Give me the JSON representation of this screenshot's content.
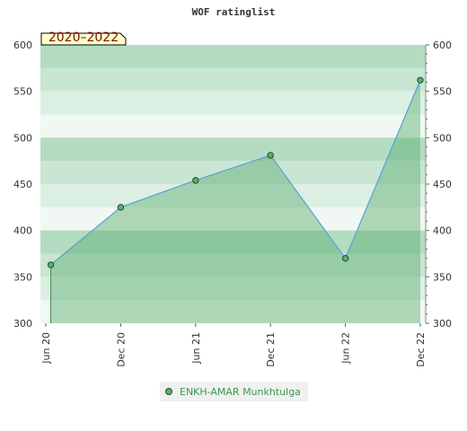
{
  "chart_data": {
    "type": "area",
    "title": "WOF ratinglist",
    "badge": "2020–2022",
    "categories": [
      "Jun 20",
      "Dec 20",
      "Jun 21",
      "Dec 21",
      "Jun 22",
      "Dec 22"
    ],
    "x": [
      0,
      6,
      12,
      18,
      24,
      30
    ],
    "series": [
      {
        "name": "ENKH-AMAR Munkhtulga",
        "x": [
          0.4,
          6,
          12,
          18,
          24,
          30
        ],
        "values": [
          363,
          425,
          454,
          481,
          370,
          562
        ]
      }
    ],
    "ylim": [
      300,
      600
    ],
    "yticks": [
      300,
      350,
      400,
      450,
      500,
      550,
      600
    ],
    "grid": true,
    "legend_position": "bottom",
    "colors": {
      "line": "#5a9fd6",
      "fill": "#5cae6e",
      "marker": "#5cae6e",
      "marker_edge": "#1f4d2c",
      "badge_bg": "#ffffcc",
      "legend_text": "#3a9a52"
    }
  }
}
